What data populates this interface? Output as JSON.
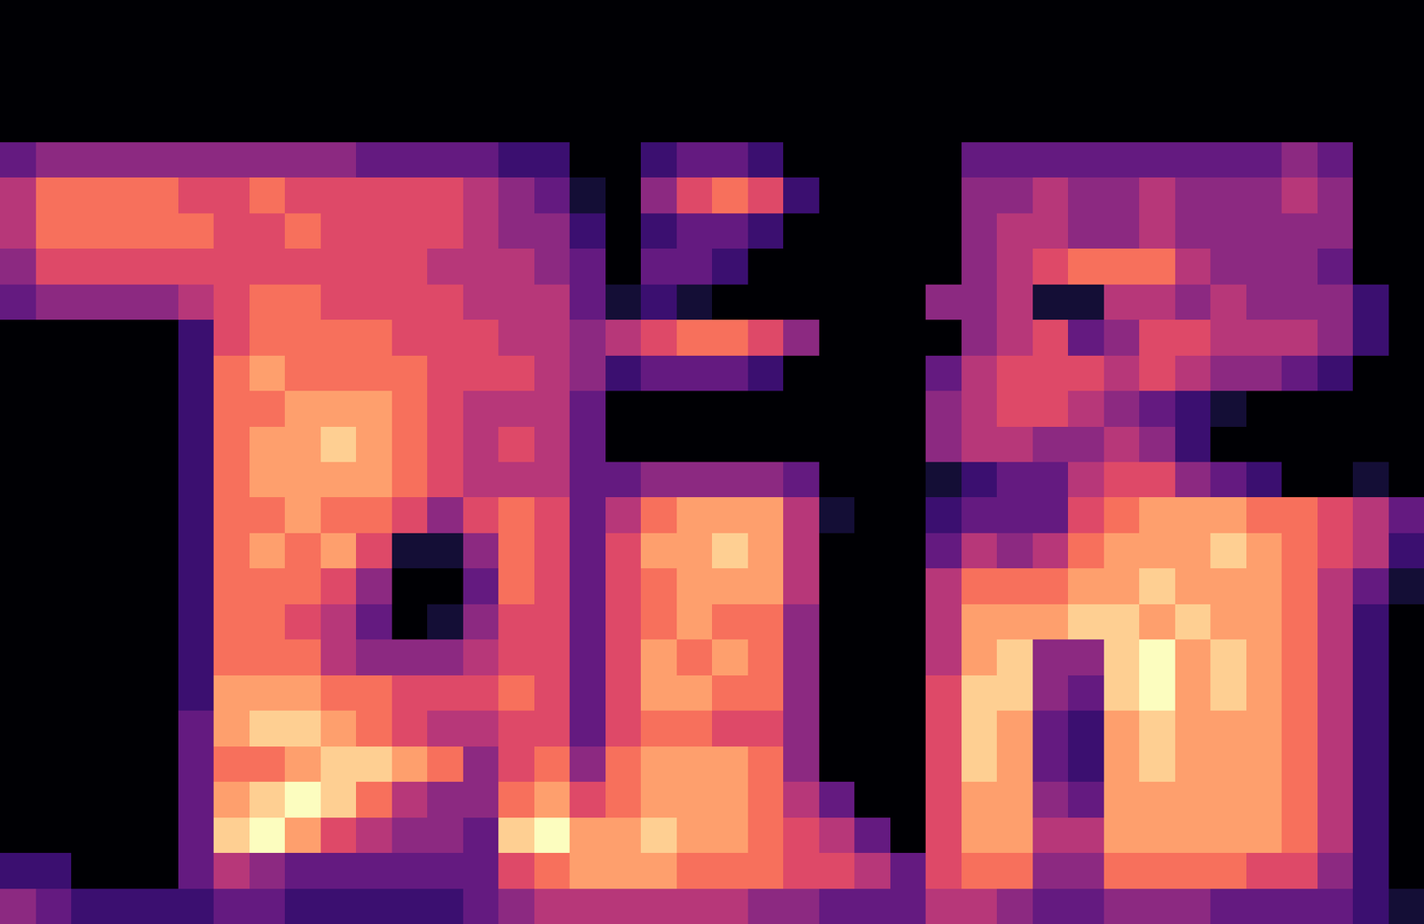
{
  "chart_data": {
    "type": "heatmap",
    "xlim": [
      -0.5,
      39.5
    ],
    "ylim": [
      25.5,
      -0.5
    ],
    "zlim": [
      0,
      10
    ],
    "tick_labels": false,
    "grid": false,
    "cells": [
      [
        0,
        0,
        0,
        0,
        0,
        0,
        0,
        0,
        0,
        0,
        0,
        0,
        0,
        0,
        0,
        0,
        0,
        0,
        0,
        0,
        0,
        0,
        0,
        0,
        0,
        0,
        0,
        0,
        0,
        0,
        0,
        0,
        0,
        0,
        0,
        0,
        0,
        0,
        0,
        0
      ],
      [
        0,
        0,
        0,
        0,
        0,
        0,
        0,
        0,
        0,
        0,
        0,
        0,
        0,
        0,
        0,
        0,
        0,
        0,
        0,
        0,
        0,
        0,
        0,
        0,
        0,
        0,
        0,
        0,
        0,
        0,
        0,
        0,
        0,
        0,
        0,
        0,
        0,
        0,
        0,
        0
      ],
      [
        0,
        0,
        0,
        0,
        0,
        0,
        0,
        0,
        0,
        0,
        0,
        0,
        0,
        0,
        0,
        0,
        0,
        0,
        0,
        0,
        0,
        0,
        0,
        0,
        0,
        0,
        0,
        0,
        0,
        0,
        0,
        0,
        0,
        0,
        0,
        0,
        0,
        0,
        0,
        0
      ],
      [
        0,
        0,
        0,
        0,
        0,
        0,
        0,
        0,
        0,
        0,
        0,
        0,
        0,
        0,
        0,
        0,
        0,
        0,
        0,
        0,
        0,
        0,
        0,
        0,
        0,
        0,
        0,
        0,
        0,
        0,
        0,
        0,
        0,
        0,
        0,
        0,
        0,
        0,
        0,
        0
      ],
      [
        3,
        4,
        4,
        4,
        4,
        4,
        4,
        4,
        4,
        4,
        3,
        3,
        3,
        3,
        2,
        2,
        0,
        0,
        2,
        3,
        3,
        2,
        0,
        0,
        0,
        0,
        0,
        3,
        3,
        3,
        3,
        3,
        3,
        3,
        3,
        3,
        4,
        3,
        0,
        0
      ],
      [
        5,
        7,
        7,
        7,
        7,
        6,
        6,
        7,
        6,
        6,
        6,
        6,
        6,
        5,
        4,
        3,
        1,
        0,
        4,
        6,
        7,
        6,
        2,
        0,
        0,
        0,
        0,
        4,
        4,
        5,
        4,
        4,
        5,
        4,
        4,
        4,
        5,
        4,
        0,
        0
      ],
      [
        5,
        7,
        7,
        7,
        7,
        7,
        6,
        6,
        7,
        6,
        6,
        6,
        6,
        5,
        4,
        4,
        2,
        0,
        2,
        3,
        3,
        2,
        0,
        0,
        0,
        0,
        0,
        4,
        5,
        5,
        4,
        4,
        5,
        4,
        4,
        4,
        4,
        4,
        0,
        0
      ],
      [
        4,
        6,
        6,
        6,
        6,
        6,
        6,
        6,
        6,
        6,
        6,
        6,
        5,
        5,
        5,
        4,
        3,
        0,
        3,
        3,
        2,
        0,
        0,
        0,
        0,
        0,
        0,
        4,
        5,
        6,
        7,
        7,
        7,
        5,
        4,
        4,
        4,
        3,
        0,
        0
      ],
      [
        3,
        4,
        4,
        4,
        4,
        5,
        6,
        7,
        7,
        6,
        6,
        6,
        6,
        5,
        5,
        5,
        3,
        1,
        2,
        1,
        0,
        0,
        0,
        0,
        0,
        0,
        4,
        4,
        5,
        1,
        1,
        5,
        5,
        4,
        5,
        4,
        4,
        4,
        2,
        0
      ],
      [
        0,
        0,
        0,
        0,
        0,
        2,
        6,
        7,
        7,
        7,
        7,
        6,
        6,
        6,
        5,
        5,
        4,
        5,
        6,
        7,
        7,
        6,
        4,
        0,
        0,
        0,
        0,
        4,
        5,
        6,
        3,
        4,
        6,
        6,
        5,
        5,
        5,
        4,
        2,
        0
      ],
      [
        0,
        0,
        0,
        0,
        0,
        2,
        7,
        8,
        7,
        7,
        7,
        7,
        6,
        6,
        6,
        5,
        4,
        2,
        3,
        3,
        3,
        2,
        0,
        0,
        0,
        0,
        3,
        5,
        6,
        6,
        6,
        5,
        6,
        5,
        4,
        4,
        3,
        2,
        0,
        0
      ],
      [
        0,
        0,
        0,
        0,
        0,
        2,
        7,
        7,
        8,
        8,
        8,
        7,
        6,
        5,
        5,
        5,
        3,
        0,
        0,
        0,
        0,
        0,
        0,
        0,
        0,
        0,
        4,
        5,
        6,
        6,
        5,
        4,
        3,
        2,
        1,
        0,
        0,
        0,
        0,
        0
      ],
      [
        0,
        0,
        0,
        0,
        0,
        2,
        7,
        8,
        8,
        9,
        8,
        7,
        6,
        5,
        6,
        5,
        3,
        0,
        0,
        0,
        0,
        0,
        0,
        0,
        0,
        0,
        4,
        5,
        5,
        4,
        4,
        5,
        4,
        2,
        0,
        0,
        0,
        0,
        0,
        0
      ],
      [
        0,
        0,
        0,
        0,
        0,
        2,
        7,
        8,
        8,
        8,
        8,
        7,
        6,
        5,
        5,
        5,
        3,
        3,
        4,
        4,
        4,
        4,
        3,
        0,
        0,
        0,
        1,
        2,
        3,
        3,
        5,
        6,
        6,
        4,
        3,
        2,
        0,
        0,
        1,
        0
      ],
      [
        0,
        0,
        0,
        0,
        0,
        2,
        7,
        7,
        8,
        7,
        7,
        6,
        4,
        6,
        7,
        6,
        3,
        5,
        7,
        8,
        8,
        8,
        5,
        1,
        0,
        0,
        2,
        3,
        3,
        3,
        6,
        7,
        8,
        8,
        8,
        7,
        7,
        6,
        5,
        3
      ],
      [
        0,
        0,
        0,
        0,
        0,
        2,
        7,
        8,
        7,
        8,
        6,
        1,
        1,
        4,
        7,
        6,
        3,
        6,
        8,
        8,
        9,
        8,
        5,
        0,
        0,
        0,
        3,
        5,
        4,
        5,
        7,
        8,
        8,
        8,
        9,
        8,
        7,
        6,
        5,
        2
      ],
      [
        0,
        0,
        0,
        0,
        0,
        2,
        7,
        7,
        7,
        6,
        4,
        0,
        0,
        3,
        7,
        6,
        3,
        6,
        7,
        8,
        8,
        8,
        5,
        0,
        0,
        0,
        5,
        7,
        7,
        7,
        8,
        8,
        9,
        8,
        8,
        8,
        7,
        5,
        3,
        1
      ],
      [
        0,
        0,
        0,
        0,
        0,
        2,
        7,
        7,
        6,
        5,
        3,
        0,
        1,
        4,
        6,
        6,
        3,
        6,
        7,
        8,
        7,
        7,
        4,
        0,
        0,
        0,
        5,
        8,
        8,
        8,
        9,
        9,
        8,
        9,
        8,
        8,
        7,
        5,
        2,
        0
      ],
      [
        0,
        0,
        0,
        0,
        0,
        2,
        7,
        7,
        7,
        5,
        4,
        4,
        4,
        5,
        6,
        6,
        3,
        6,
        8,
        7,
        8,
        7,
        4,
        0,
        0,
        0,
        5,
        8,
        9,
        4,
        4,
        9,
        10,
        8,
        9,
        8,
        7,
        5,
        2,
        0
      ],
      [
        0,
        0,
        0,
        0,
        0,
        2,
        8,
        8,
        8,
        7,
        7,
        6,
        6,
        6,
        7,
        6,
        3,
        6,
        8,
        8,
        7,
        7,
        4,
        0,
        0,
        0,
        6,
        9,
        9,
        4,
        3,
        9,
        10,
        8,
        9,
        8,
        7,
        5,
        2,
        0
      ],
      [
        0,
        0,
        0,
        0,
        0,
        3,
        8,
        9,
        9,
        8,
        7,
        6,
        5,
        5,
        6,
        6,
        3,
        6,
        7,
        7,
        6,
        6,
        4,
        0,
        0,
        0,
        6,
        9,
        8,
        3,
        2,
        8,
        9,
        8,
        8,
        8,
        7,
        5,
        2,
        0
      ],
      [
        0,
        0,
        0,
        0,
        0,
        3,
        7,
        7,
        8,
        9,
        9,
        8,
        7,
        4,
        6,
        7,
        4,
        7,
        8,
        8,
        8,
        7,
        4,
        0,
        0,
        0,
        6,
        9,
        8,
        3,
        2,
        8,
        9,
        8,
        8,
        8,
        7,
        5,
        2,
        0
      ],
      [
        0,
        0,
        0,
        0,
        0,
        3,
        8,
        9,
        10,
        9,
        7,
        5,
        4,
        4,
        7,
        8,
        6,
        7,
        8,
        8,
        8,
        7,
        5,
        3,
        0,
        0,
        6,
        8,
        8,
        4,
        3,
        8,
        8,
        8,
        8,
        8,
        7,
        5,
        2,
        0
      ],
      [
        0,
        0,
        0,
        0,
        0,
        3,
        9,
        10,
        8,
        6,
        5,
        4,
        4,
        3,
        9,
        10,
        8,
        8,
        9,
        8,
        8,
        7,
        6,
        5,
        3,
        0,
        6,
        8,
        8,
        5,
        5,
        8,
        8,
        8,
        8,
        8,
        7,
        5,
        2,
        0
      ],
      [
        2,
        2,
        0,
        0,
        0,
        3,
        5,
        4,
        3,
        3,
        3,
        3,
        3,
        3,
        6,
        7,
        8,
        8,
        8,
        7,
        7,
        7,
        6,
        6,
        5,
        3,
        6,
        7,
        7,
        4,
        4,
        7,
        7,
        7,
        7,
        6,
        6,
        4,
        2,
        0
      ],
      [
        4,
        3,
        2,
        2,
        2,
        2,
        3,
        3,
        2,
        2,
        2,
        2,
        2,
        3,
        4,
        5,
        5,
        5,
        5,
        5,
        5,
        4,
        4,
        3,
        3,
        3,
        5,
        5,
        4,
        3,
        3,
        4,
        4,
        4,
        3,
        3,
        3,
        3,
        2,
        1
      ]
    ]
  }
}
